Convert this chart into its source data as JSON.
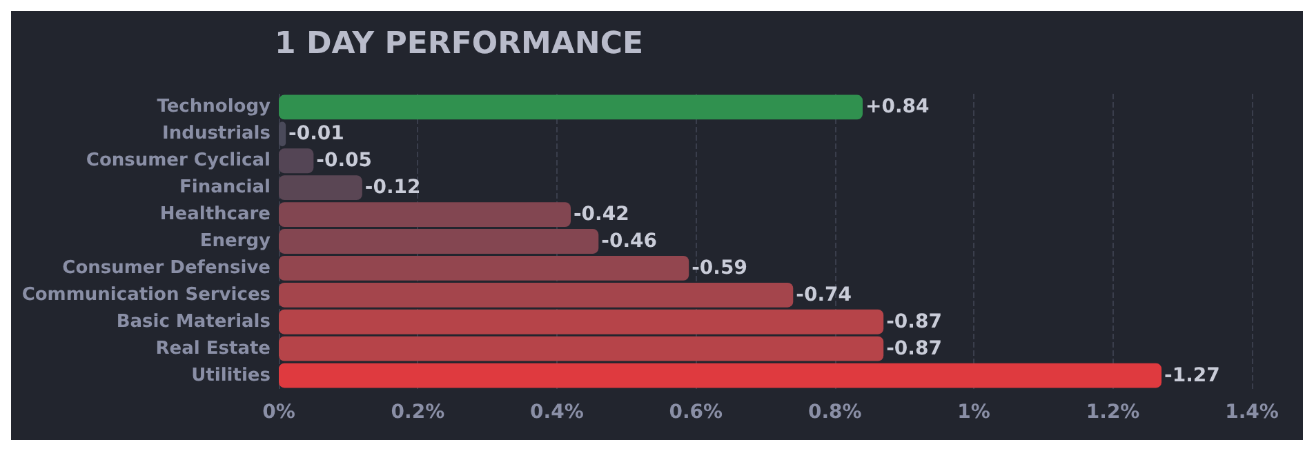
{
  "chart_data": {
    "type": "bar",
    "orientation": "horizontal",
    "title": "1 DAY PERFORMANCE",
    "categories": [
      "Technology",
      "Industrials",
      "Consumer Cyclical",
      "Financial",
      "Healthcare",
      "Energy",
      "Consumer Defensive",
      "Communication Services",
      "Basic Materials",
      "Real Estate",
      "Utilities"
    ],
    "values": [
      0.84,
      -0.01,
      -0.05,
      -0.12,
      -0.42,
      -0.46,
      -0.59,
      -0.74,
      -0.87,
      -0.87,
      -1.27
    ],
    "base": [
      0,
      0.01,
      0.05,
      0.12,
      0.42,
      0.46,
      0.59,
      0.74,
      0.87,
      0.87,
      1.27
    ],
    "value_labels": [
      "+0.84",
      "-0.01",
      "-0.05",
      "-0.12",
      "-0.42",
      "-0.46",
      "-0.59",
      "-0.74",
      "-0.87",
      "-0.87",
      "-1.27"
    ],
    "colors": [
      "#30914f",
      "#4a4a5a",
      "#544555",
      "#5a4654",
      "#824651",
      "#844651",
      "#93464f",
      "#a4454c",
      "#b64449",
      "#b64449",
      "#df3a3f"
    ],
    "xlim": [
      0,
      1.4
    ],
    "xticks": [
      {
        "value": 0,
        "label": "0%"
      },
      {
        "value": 0.2,
        "label": "0.2%"
      },
      {
        "value": 0.4,
        "label": "0.4%"
      },
      {
        "value": 0.6,
        "label": "0.6%"
      },
      {
        "value": 0.8,
        "label": "0.8%"
      },
      {
        "value": 1,
        "label": "1%"
      },
      {
        "value": 1.2,
        "label": "1.2%"
      },
      {
        "value": 1.4,
        "label": "1.4%"
      }
    ],
    "grid": "x"
  }
}
